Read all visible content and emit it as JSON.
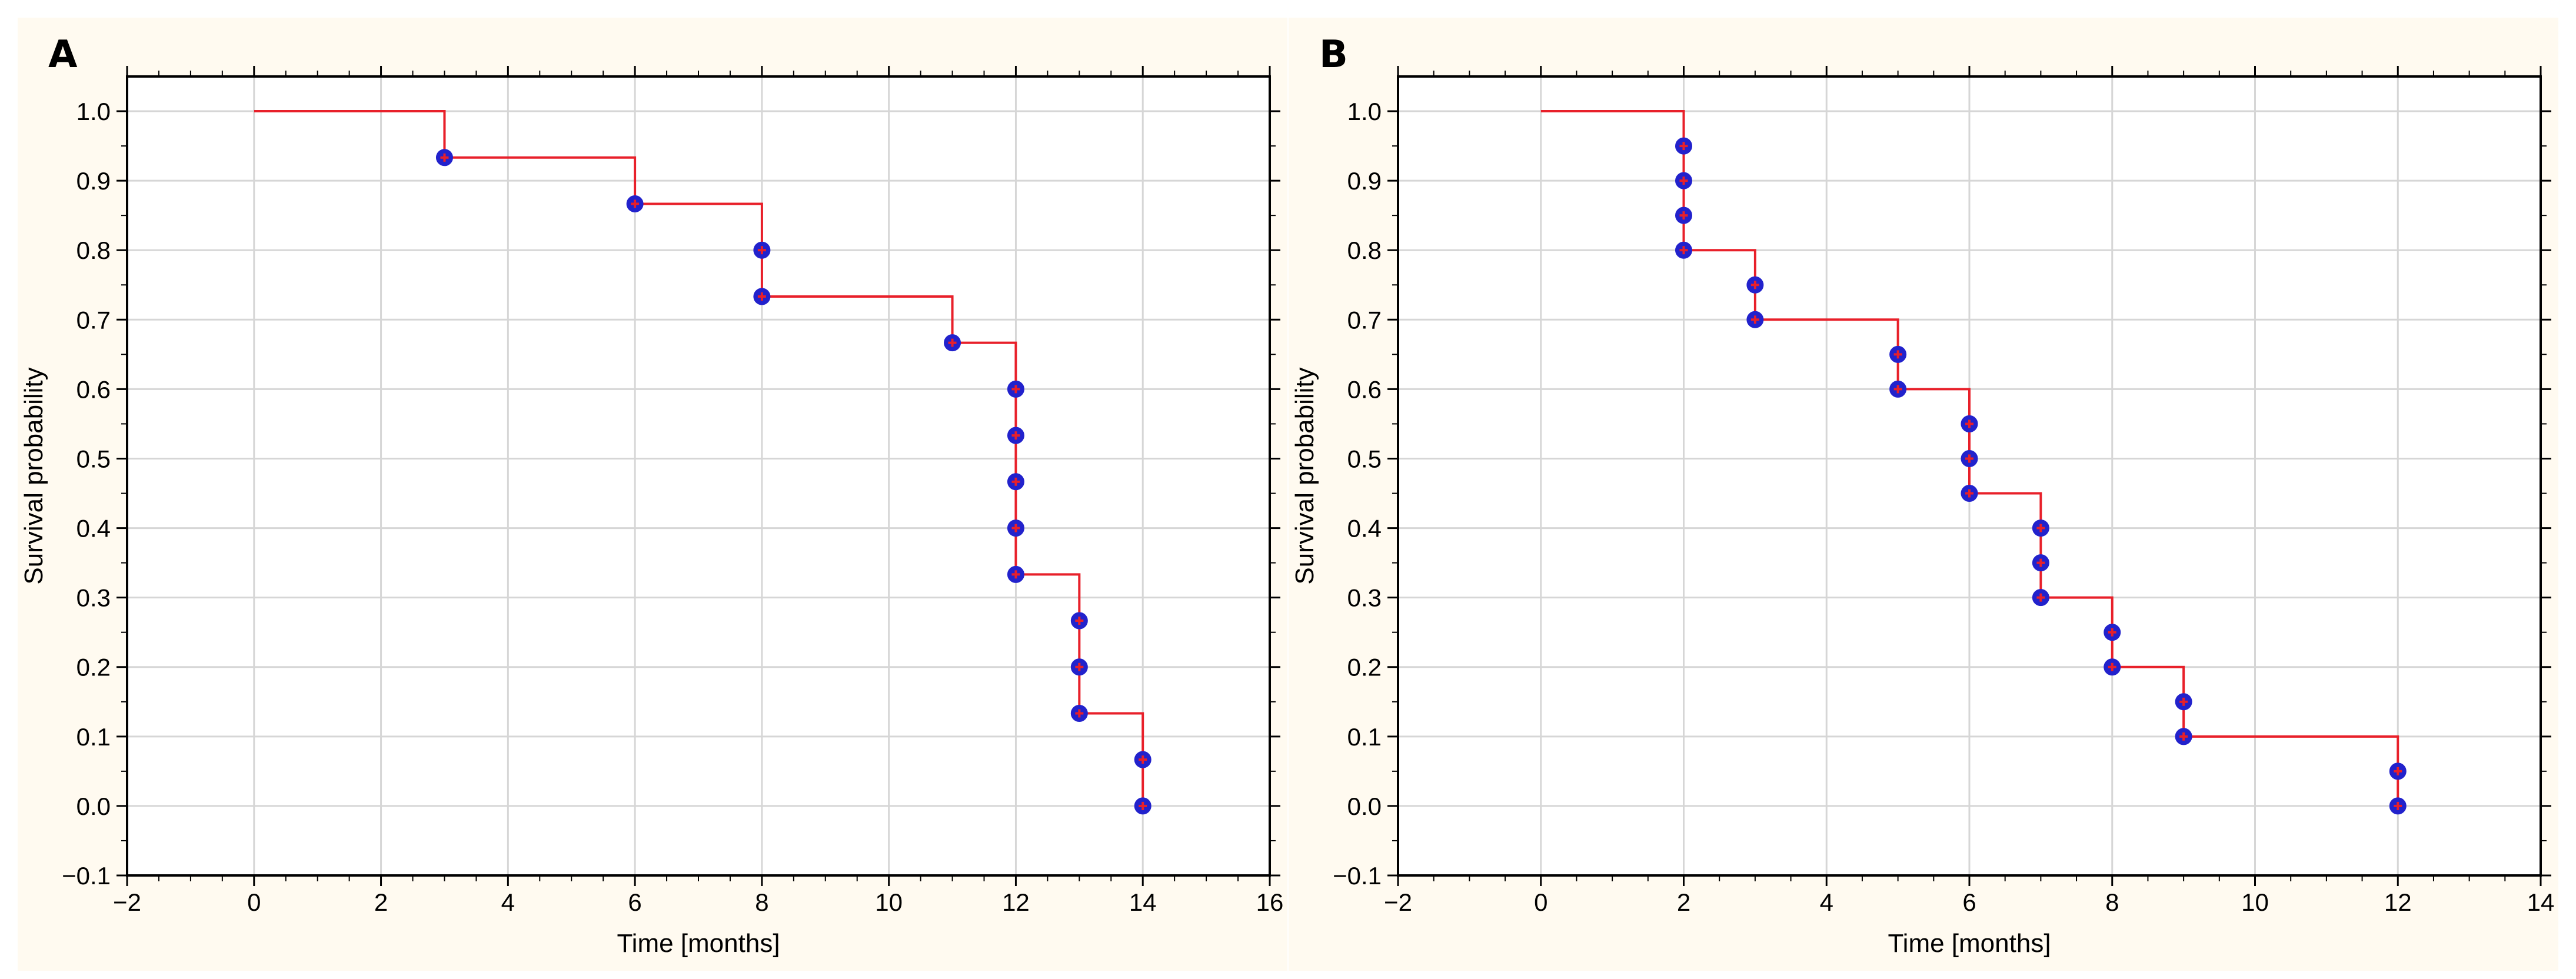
{
  "chart_data": [
    {
      "type": "line",
      "panel_label": "A",
      "title": "",
      "xlabel": "Time [months]",
      "ylabel": "Survival probability",
      "xlim": [
        -2,
        16
      ],
      "ylim": [
        -0.1,
        1.05
      ],
      "xticks": [
        -2,
        0,
        2,
        4,
        6,
        8,
        10,
        12,
        14,
        16
      ],
      "yticks": [
        -0.1,
        0.0,
        0.1,
        0.2,
        0.3,
        0.4,
        0.5,
        0.6,
        0.7,
        0.8,
        0.9,
        1.0
      ],
      "xtick_labels": [
        "−2",
        "0",
        "2",
        "4",
        "6",
        "8",
        "10",
        "12",
        "14",
        "16"
      ],
      "ytick_labels": [
        "−0.1",
        "0.0",
        "0.1",
        "0.2",
        "0.3",
        "0.4",
        "0.5",
        "0.6",
        "0.7",
        "0.8",
        "0.9",
        "1.0"
      ],
      "grid": true,
      "series": [
        {
          "name": "survival",
          "style": "step",
          "line_color": "#e8202a",
          "x": [
            0,
            3,
            6,
            8,
            11,
            12,
            13,
            14
          ],
          "y": [
            1.0,
            0.9333,
            0.8667,
            0.7333,
            0.6667,
            0.3333,
            0.1333,
            0.0
          ]
        },
        {
          "name": "events",
          "style": "markers",
          "marker_color": "#2222cc",
          "marker_center_color": "#e8202a",
          "x": [
            3,
            6,
            8,
            8,
            11,
            12,
            12,
            12,
            12,
            12,
            13,
            13,
            13,
            14,
            14
          ],
          "y": [
            0.9333,
            0.8667,
            0.8,
            0.7333,
            0.6667,
            0.6,
            0.5333,
            0.4667,
            0.4,
            0.3333,
            0.2667,
            0.2,
            0.1333,
            0.0667,
            0.0
          ]
        }
      ]
    },
    {
      "type": "line",
      "panel_label": "B",
      "title": "",
      "xlabel": "Time [months]",
      "ylabel": "Survival probability",
      "xlim": [
        -2,
        14
      ],
      "ylim": [
        -0.1,
        1.05
      ],
      "xticks": [
        -2,
        0,
        2,
        4,
        6,
        8,
        10,
        12,
        14
      ],
      "yticks": [
        -0.1,
        0.0,
        0.1,
        0.2,
        0.3,
        0.4,
        0.5,
        0.6,
        0.7,
        0.8,
        0.9,
        1.0
      ],
      "xtick_labels": [
        "−2",
        "0",
        "2",
        "4",
        "6",
        "8",
        "10",
        "12",
        "14"
      ],
      "ytick_labels": [
        "−0.1",
        "0.0",
        "0.1",
        "0.2",
        "0.3",
        "0.4",
        "0.5",
        "0.6",
        "0.7",
        "0.8",
        "0.9",
        "1.0"
      ],
      "grid": true,
      "series": [
        {
          "name": "survival",
          "style": "step",
          "line_color": "#e8202a",
          "x": [
            0,
            2,
            3,
            5,
            6,
            7,
            8,
            9,
            12
          ],
          "y": [
            1.0,
            0.8,
            0.7,
            0.6,
            0.45,
            0.3,
            0.2,
            0.1,
            0.0
          ]
        },
        {
          "name": "events",
          "style": "markers",
          "marker_color": "#2222cc",
          "marker_center_color": "#e8202a",
          "x": [
            2,
            2,
            2,
            2,
            3,
            3,
            5,
            5,
            6,
            6,
            6,
            7,
            7,
            7,
            8,
            8,
            9,
            9,
            12,
            12
          ],
          "y": [
            0.95,
            0.9,
            0.85,
            0.8,
            0.75,
            0.7,
            0.65,
            0.6,
            0.55,
            0.5,
            0.45,
            0.4,
            0.35,
            0.3,
            0.25,
            0.2,
            0.15,
            0.1,
            0.05,
            0.0
          ]
        }
      ]
    }
  ]
}
